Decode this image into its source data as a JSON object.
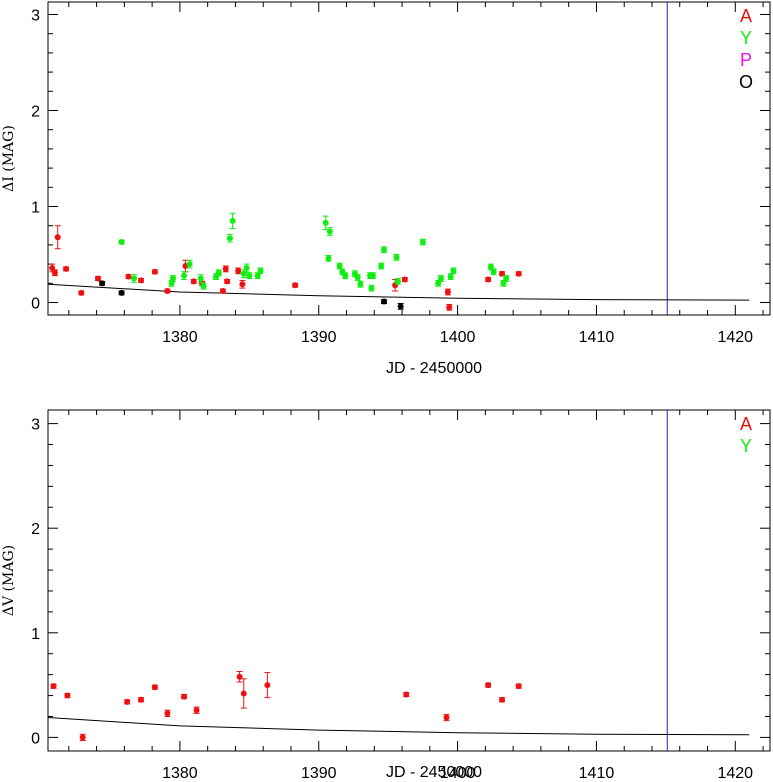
{
  "colors": {
    "A": "#ee1111",
    "Y": "#11ee11",
    "P": "#ee11ee",
    "O": "#000000",
    "marker_line": "#2222bb",
    "axes": "#000000"
  },
  "chart_data": [
    {
      "type": "scatter",
      "xlabel": "JD - 2450000",
      "ylabel": "ΔI  (MAG)",
      "xlim": [
        1370.5,
        1422.5
      ],
      "ylim": [
        -0.13,
        3.13
      ],
      "x_ticks": [
        1380,
        1390,
        1400,
        1410,
        1420
      ],
      "x_tick_labels": [
        "1380",
        "1390",
        "1400",
        "1410",
        "1420"
      ],
      "y_ticks": [
        0,
        1,
        2,
        3
      ],
      "y_tick_labels": [
        "0",
        "1",
        "2",
        "3"
      ],
      "grid": false,
      "legend": [
        "A",
        "Y",
        "P",
        "O"
      ],
      "legend_placement": "top-right",
      "vertical_line_x": 1415.1,
      "model_curve": {
        "x": [
          1370.5,
          1380,
          1390,
          1400,
          1410,
          1421
        ],
        "y": [
          0.19,
          0.11,
          0.07,
          0.045,
          0.03,
          0.025
        ]
      },
      "series": [
        {
          "name": "A",
          "points": [
            {
              "x": 1370.8,
              "y": 0.36,
              "e": 0.04
            },
            {
              "x": 1371.0,
              "y": 0.31,
              "e": 0.03
            },
            {
              "x": 1371.2,
              "y": 0.68,
              "e": 0.12
            },
            {
              "x": 1371.8,
              "y": 0.35,
              "e": 0.02
            },
            {
              "x": 1372.9,
              "y": 0.1,
              "e": 0.02
            },
            {
              "x": 1374.1,
              "y": 0.25,
              "e": 0.02
            },
            {
              "x": 1376.3,
              "y": 0.27,
              "e": 0.02
            },
            {
              "x": 1377.2,
              "y": 0.23,
              "e": 0.02
            },
            {
              "x": 1378.2,
              "y": 0.32,
              "e": 0.02
            },
            {
              "x": 1379.1,
              "y": 0.12,
              "e": 0.02
            },
            {
              "x": 1380.4,
              "y": 0.38,
              "e": 0.06
            },
            {
              "x": 1381.0,
              "y": 0.22,
              "e": 0.02
            },
            {
              "x": 1381.6,
              "y": 0.2,
              "e": 0.02
            },
            {
              "x": 1383.1,
              "y": 0.12,
              "e": 0.02
            },
            {
              "x": 1383.3,
              "y": 0.35,
              "e": 0.03
            },
            {
              "x": 1383.4,
              "y": 0.22,
              "e": 0.02
            },
            {
              "x": 1384.2,
              "y": 0.33,
              "e": 0.03
            },
            {
              "x": 1384.5,
              "y": 0.19,
              "e": 0.04
            },
            {
              "x": 1388.3,
              "y": 0.18,
              "e": 0.02
            },
            {
              "x": 1395.5,
              "y": 0.18,
              "e": 0.06
            },
            {
              "x": 1396.2,
              "y": 0.24,
              "e": 0.02
            },
            {
              "x": 1399.3,
              "y": 0.11,
              "e": 0.03
            },
            {
              "x": 1399.4,
              "y": -0.05,
              "e": 0.03
            },
            {
              "x": 1402.2,
              "y": 0.24,
              "e": 0.02
            },
            {
              "x": 1403.2,
              "y": 0.3,
              "e": 0.02
            },
            {
              "x": 1404.4,
              "y": 0.3,
              "e": 0.02
            }
          ]
        },
        {
          "name": "Y",
          "points": [
            {
              "x": 1375.8,
              "y": 0.63,
              "e": 0.02
            },
            {
              "x": 1376.7,
              "y": 0.25,
              "e": 0.04
            },
            {
              "x": 1379.4,
              "y": 0.2,
              "e": 0.03
            },
            {
              "x": 1379.5,
              "y": 0.25,
              "e": 0.03
            },
            {
              "x": 1380.3,
              "y": 0.28,
              "e": 0.04
            },
            {
              "x": 1380.7,
              "y": 0.4,
              "e": 0.04
            },
            {
              "x": 1381.5,
              "y": 0.25,
              "e": 0.04
            },
            {
              "x": 1381.7,
              "y": 0.17,
              "e": 0.03
            },
            {
              "x": 1382.6,
              "y": 0.27,
              "e": 0.03
            },
            {
              "x": 1382.8,
              "y": 0.31,
              "e": 0.03
            },
            {
              "x": 1383.6,
              "y": 0.67,
              "e": 0.04
            },
            {
              "x": 1383.8,
              "y": 0.85,
              "e": 0.08
            },
            {
              "x": 1384.6,
              "y": 0.3,
              "e": 0.04
            },
            {
              "x": 1384.8,
              "y": 0.36,
              "e": 0.04
            },
            {
              "x": 1385.0,
              "y": 0.28,
              "e": 0.03
            },
            {
              "x": 1385.6,
              "y": 0.28,
              "e": 0.03
            },
            {
              "x": 1385.8,
              "y": 0.33,
              "e": 0.03
            },
            {
              "x": 1390.5,
              "y": 0.83,
              "e": 0.07
            },
            {
              "x": 1390.7,
              "y": 0.46,
              "e": 0.03
            },
            {
              "x": 1390.8,
              "y": 0.74,
              "e": 0.04
            },
            {
              "x": 1391.5,
              "y": 0.38,
              "e": 0.03
            },
            {
              "x": 1391.7,
              "y": 0.32,
              "e": 0.03
            },
            {
              "x": 1391.9,
              "y": 0.28,
              "e": 0.03
            },
            {
              "x": 1392.6,
              "y": 0.3,
              "e": 0.03
            },
            {
              "x": 1392.8,
              "y": 0.26,
              "e": 0.03
            },
            {
              "x": 1393.0,
              "y": 0.19,
              "e": 0.03
            },
            {
              "x": 1393.7,
              "y": 0.28,
              "e": 0.03
            },
            {
              "x": 1393.8,
              "y": 0.15,
              "e": 0.03
            },
            {
              "x": 1393.9,
              "y": 0.28,
              "e": 0.03
            },
            {
              "x": 1394.5,
              "y": 0.38,
              "e": 0.03
            },
            {
              "x": 1394.7,
              "y": 0.55,
              "e": 0.03
            },
            {
              "x": 1395.6,
              "y": 0.47,
              "e": 0.03
            },
            {
              "x": 1395.7,
              "y": 0.22,
              "e": 0.03
            },
            {
              "x": 1397.5,
              "y": 0.63,
              "e": 0.03
            },
            {
              "x": 1398.6,
              "y": 0.2,
              "e": 0.03
            },
            {
              "x": 1398.8,
              "y": 0.25,
              "e": 0.03
            },
            {
              "x": 1399.5,
              "y": 0.27,
              "e": 0.03
            },
            {
              "x": 1399.7,
              "y": 0.33,
              "e": 0.03
            },
            {
              "x": 1402.4,
              "y": 0.37,
              "e": 0.03
            },
            {
              "x": 1402.6,
              "y": 0.32,
              "e": 0.03
            },
            {
              "x": 1403.3,
              "y": 0.2,
              "e": 0.03
            },
            {
              "x": 1403.5,
              "y": 0.25,
              "e": 0.03
            }
          ]
        },
        {
          "name": "O",
          "points": [
            {
              "x": 1374.4,
              "y": 0.2,
              "e": 0.02
            },
            {
              "x": 1375.8,
              "y": 0.1,
              "e": 0.02
            },
            {
              "x": 1394.7,
              "y": 0.01,
              "e": 0.02
            },
            {
              "x": 1395.9,
              "y": -0.04,
              "e": 0.03
            }
          ]
        }
      ]
    },
    {
      "type": "scatter",
      "xlabel": "JD - 2450000",
      "ylabel": "ΔV  (MAG)",
      "xlim": [
        1370.5,
        1422.5
      ],
      "ylim": [
        -0.13,
        3.13
      ],
      "x_ticks": [
        1380,
        1390,
        1400,
        1410,
        1420
      ],
      "x_tick_labels": [
        "1380",
        "1390",
        "1400",
        "1410",
        "1420"
      ],
      "y_ticks": [
        0,
        1,
        2,
        3
      ],
      "y_tick_labels": [
        "0",
        "1",
        "2",
        "3"
      ],
      "grid": false,
      "legend": [
        "A",
        "Y"
      ],
      "legend_placement": "top-right",
      "vertical_line_x": 1415.1,
      "model_curve": {
        "x": [
          1370.5,
          1380,
          1390,
          1400,
          1410,
          1421
        ],
        "y": [
          0.19,
          0.11,
          0.07,
          0.045,
          0.03,
          0.025
        ]
      },
      "series": [
        {
          "name": "A",
          "points": [
            {
              "x": 1370.9,
              "y": 0.49,
              "e": 0.02
            },
            {
              "x": 1371.9,
              "y": 0.4,
              "e": 0.02
            },
            {
              "x": 1373.0,
              "y": 0.0,
              "e": 0.03
            },
            {
              "x": 1376.2,
              "y": 0.34,
              "e": 0.02
            },
            {
              "x": 1377.2,
              "y": 0.36,
              "e": 0.02
            },
            {
              "x": 1378.2,
              "y": 0.48,
              "e": 0.02
            },
            {
              "x": 1379.1,
              "y": 0.23,
              "e": 0.03
            },
            {
              "x": 1380.3,
              "y": 0.39,
              "e": 0.02
            },
            {
              "x": 1381.2,
              "y": 0.26,
              "e": 0.03
            },
            {
              "x": 1384.3,
              "y": 0.58,
              "e": 0.05
            },
            {
              "x": 1384.6,
              "y": 0.42,
              "e": 0.14
            },
            {
              "x": 1386.3,
              "y": 0.5,
              "e": 0.12
            },
            {
              "x": 1396.3,
              "y": 0.41,
              "e": 0.02
            },
            {
              "x": 1399.2,
              "y": 0.19,
              "e": 0.03
            },
            {
              "x": 1402.2,
              "y": 0.5,
              "e": 0.02
            },
            {
              "x": 1403.2,
              "y": 0.36,
              "e": 0.02
            },
            {
              "x": 1404.4,
              "y": 0.49,
              "e": 0.02
            }
          ]
        },
        {
          "name": "Y",
          "points": []
        }
      ]
    }
  ]
}
